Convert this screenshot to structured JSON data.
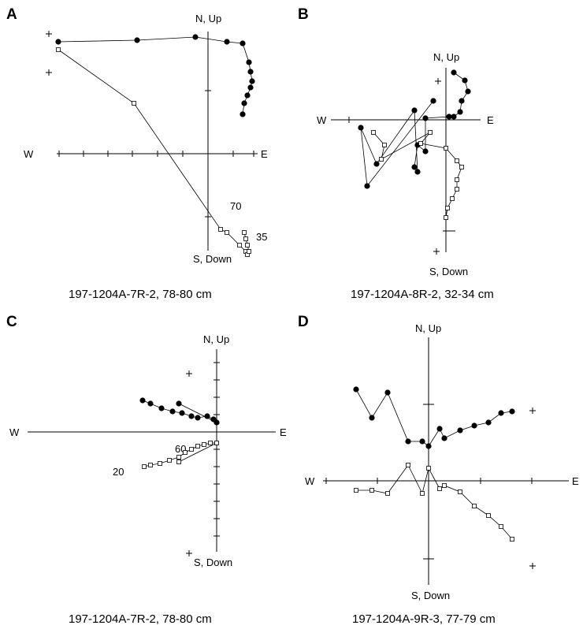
{
  "chart_data": [
    {
      "type": "scatter",
      "panel": "A",
      "caption": "197-1204A-7R-2, 78-80 cm",
      "axis_labels": {
        "top": "N, Up",
        "bottom": "S, Down",
        "left": "W",
        "right": "E"
      },
      "annotations": [
        "70",
        "35"
      ],
      "series": [
        {
          "marker": "filled-circle",
          "x": [
            -0.95,
            -0.45,
            -0.08,
            0.12,
            0.22,
            0.26,
            0.27,
            0.28,
            0.27,
            0.25,
            0.23,
            0.22
          ],
          "y": [
            0.71,
            0.72,
            0.74,
            0.71,
            0.7,
            0.58,
            0.52,
            0.46,
            0.42,
            0.37,
            0.32,
            0.25
          ]
        },
        {
          "marker": "open-square",
          "x": [
            -0.95,
            -0.47,
            0.08,
            0.12,
            0.2,
            0.24,
            0.25,
            0.26,
            0.25,
            0.24,
            0.23
          ],
          "y": [
            0.66,
            0.32,
            -0.48,
            -0.5,
            -0.58,
            -0.62,
            -0.64,
            -0.62,
            -0.58,
            -0.54,
            -0.5
          ]
        }
      ]
    },
    {
      "type": "scatter",
      "panel": "B",
      "caption": "197-1204A-8R-2, 32-34 cm",
      "axis_labels": {
        "top": "N, Up",
        "bottom": "S, Down",
        "left": "W",
        "right": "E"
      },
      "annotations": [],
      "series": [
        {
          "marker": "filled-circle",
          "x": [
            0.05,
            0.12,
            0.14,
            0.1,
            0.09,
            0.05,
            0.02,
            -0.13,
            -0.13,
            -0.18,
            -0.2,
            -0.18,
            -0.2,
            -0.44,
            -0.54,
            -0.5,
            -0.08
          ],
          "y": [
            0.3,
            0.25,
            0.18,
            0.12,
            0.05,
            0.02,
            0.02,
            0.01,
            -0.2,
            -0.16,
            -0.3,
            -0.33,
            0.06,
            -0.28,
            -0.05,
            -0.42,
            0.12
          ]
        },
        {
          "marker": "open-square",
          "x": [
            -0.46,
            -0.39,
            -0.41,
            -0.1,
            -0.16,
            0.0,
            0.07,
            0.1,
            0.07,
            0.07,
            0.04,
            0.01,
            0.0
          ],
          "y": [
            -0.08,
            -0.16,
            -0.25,
            -0.08,
            -0.15,
            -0.18,
            -0.26,
            -0.3,
            -0.38,
            -0.44,
            -0.5,
            -0.56,
            -0.62
          ]
        }
      ]
    },
    {
      "type": "scatter",
      "panel": "C",
      "caption": "197-1204A-7R-2, 78-80 cm",
      "axis_labels": {
        "top": "N, Up",
        "bottom": "S, Down",
        "left": "W",
        "right": "E"
      },
      "annotations": [
        "20",
        "60"
      ],
      "series": [
        {
          "marker": "filled-circle",
          "x": [
            -0.47,
            -0.42,
            -0.35,
            -0.28,
            -0.22,
            -0.16,
            -0.12,
            -0.06,
            -0.02,
            0.0,
            -0.24
          ],
          "y": [
            0.2,
            0.18,
            0.15,
            0.13,
            0.12,
            0.1,
            0.09,
            0.1,
            0.08,
            0.06,
            0.18
          ]
        },
        {
          "marker": "open-square",
          "x": [
            -0.46,
            -0.42,
            -0.36,
            -0.3,
            -0.24,
            -0.2,
            -0.16,
            -0.12,
            -0.08,
            -0.04,
            0.0,
            -0.24
          ],
          "y": [
            -0.22,
            -0.21,
            -0.2,
            -0.18,
            -0.16,
            -0.13,
            -0.11,
            -0.09,
            -0.08,
            -0.07,
            -0.07,
            -0.19
          ]
        }
      ]
    },
    {
      "type": "scatter",
      "panel": "D",
      "caption": "197-1204A-9R-3, 77-79 cm",
      "axis_labels": {
        "top": "N, Up",
        "bottom": "S, Down",
        "left": "W",
        "right": "E"
      },
      "annotations": [],
      "series": [
        {
          "marker": "filled-circle",
          "x": [
            -0.46,
            -0.36,
            -0.26,
            -0.13,
            -0.04,
            0.0,
            0.07,
            0.1,
            0.2,
            0.29,
            0.38,
            0.46,
            0.53
          ],
          "y": [
            0.58,
            0.4,
            0.56,
            0.25,
            0.25,
            0.22,
            0.33,
            0.27,
            0.32,
            0.35,
            0.37,
            0.43,
            0.44
          ]
        },
        {
          "marker": "open-square",
          "x": [
            -0.46,
            -0.36,
            -0.26,
            -0.13,
            -0.04,
            0.0,
            0.07,
            0.1,
            0.2,
            0.29,
            0.38,
            0.46,
            0.53
          ],
          "y": [
            -0.06,
            -0.06,
            -0.08,
            0.1,
            -0.08,
            0.08,
            -0.05,
            -0.03,
            -0.07,
            -0.16,
            -0.22,
            -0.29,
            -0.37
          ]
        }
      ]
    }
  ],
  "panels": [
    {
      "letter": "A",
      "caption": "197-1204A-7R-2, 78-80 cm"
    },
    {
      "letter": "B",
      "caption": "197-1204A-8R-2, 32-34 cm"
    },
    {
      "letter": "C",
      "caption": "197-1204A-7R-2, 78-80 cm"
    },
    {
      "letter": "D",
      "caption": "197-1204A-9R-3, 77-79 cm"
    }
  ],
  "labels": {
    "up": "N, Up",
    "down": "S, Down",
    "west": "W",
    "east": "E"
  },
  "annotations": {
    "a70": "70",
    "a35": "35",
    "c20": "20",
    "c60": "60"
  }
}
